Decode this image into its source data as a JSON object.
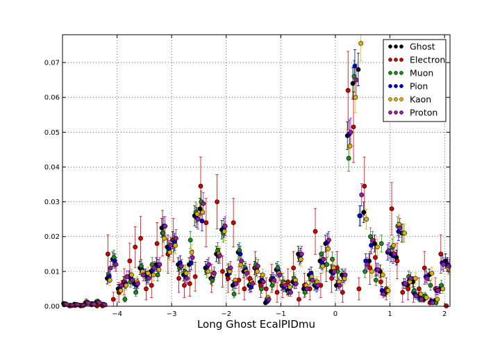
{
  "chart_data": {
    "type": "scatter",
    "title": "",
    "xlabel": "Long Ghost EcalPIDmu",
    "ylabel": "",
    "xlim": [
      -5.0,
      2.1
    ],
    "ylim": [
      0.0,
      0.078
    ],
    "xticks": [
      -4,
      -3,
      -2,
      -1,
      0,
      1,
      2
    ],
    "yticks": [
      0.0,
      0.01,
      0.02,
      0.03,
      0.04,
      0.05,
      0.06,
      0.07
    ],
    "xtick_labels": [
      "−4",
      "−3",
      "−2",
      "−1",
      "0",
      "1",
      "2"
    ],
    "ytick_labels": [
      "0.00",
      "0.01",
      "0.02",
      "0.03",
      "0.04",
      "0.05",
      "0.06",
      "0.07"
    ],
    "grid": true,
    "error_bars": true,
    "legend_position": "top-right",
    "x": [
      -4.95,
      -4.85,
      -4.75,
      -4.65,
      -4.55,
      -4.45,
      -4.35,
      -4.25,
      -4.15,
      -4.05,
      -3.95,
      -3.85,
      -3.75,
      -3.65,
      -3.55,
      -3.45,
      -3.35,
      -3.25,
      -3.15,
      -3.05,
      -2.95,
      -2.85,
      -2.75,
      -2.65,
      -2.55,
      -2.45,
      -2.35,
      -2.25,
      -2.15,
      -2.05,
      -1.95,
      -1.85,
      -1.75,
      -1.65,
      -1.55,
      -1.45,
      -1.35,
      -1.25,
      -1.15,
      -1.05,
      -0.95,
      -0.85,
      -0.75,
      -0.65,
      -0.55,
      -0.45,
      -0.35,
      -0.25,
      -0.15,
      -0.05,
      0.05,
      0.15,
      0.25,
      0.35,
      0.45,
      0.55,
      0.65,
      0.75,
      0.85,
      0.95,
      1.05,
      1.15,
      1.25,
      1.35,
      1.45,
      1.55,
      1.65,
      1.75,
      1.85,
      1.95,
      2.05
    ],
    "series": [
      {
        "name": "Ghost",
        "color": "#000000",
        "values": [
          0.0008,
          0.0002,
          0.0006,
          0.0003,
          0.001,
          0.0006,
          0.0012,
          0.0005,
          0.008,
          0.0135,
          0.005,
          0.007,
          0.0085,
          0.0065,
          0.011,
          0.009,
          0.01,
          0.012,
          0.0225,
          0.017,
          0.019,
          0.012,
          0.009,
          0.012,
          0.026,
          0.028,
          0.011,
          0.008,
          0.015,
          0.022,
          0.009,
          0.006,
          0.0155,
          0.01,
          0.006,
          0.011,
          0.007,
          0.001,
          0.0075,
          0.0105,
          0.006,
          0.0045,
          0.007,
          0.015,
          0.005,
          0.009,
          0.006,
          0.013,
          0.018,
          0.01,
          0.006,
          0.009,
          0.049,
          0.064,
          0.068,
          0.027,
          0.013,
          0.018,
          0.01,
          0.004,
          0.015,
          0.014,
          0.021,
          0.006,
          0.007,
          0.003,
          0.002,
          0.009,
          0.0015,
          0.005,
          0.013
        ]
      },
      {
        "name": "Electron",
        "color": "#d00000",
        "values": [
          0.0004,
          0.0001,
          0.0002,
          0.0001,
          0.0008,
          0.0004,
          0.0,
          0.0,
          0.015,
          0.002,
          0.004,
          0.007,
          0.013,
          0.017,
          0.0195,
          0.005,
          0.006,
          0.018,
          0.021,
          0.015,
          0.019,
          0.008,
          0.006,
          0.0065,
          0.0085,
          0.0345,
          0.024,
          0.008,
          0.03,
          0.01,
          0.008,
          0.024,
          0.0075,
          0.005,
          0.008,
          0.011,
          0.006,
          0.005,
          0.008,
          0.004,
          0.006,
          0.007,
          0.011,
          0.002,
          0.006,
          0.005,
          0.0215,
          0.006,
          0.012,
          0.008,
          0.011,
          0.004,
          0.062,
          0.0515,
          0.005,
          0.0345,
          0.011,
          0.014,
          0.007,
          0.005,
          0.028,
          0.013,
          0.004,
          0.005,
          0.004,
          0.005,
          0.011,
          0.001,
          0.005,
          0.015,
          0.0
        ]
      },
      {
        "name": "Muon",
        "color": "#1a8a1a",
        "values": [
          0.0006,
          0.0003,
          0.0005,
          0.0002,
          0.0012,
          0.0008,
          0.0014,
          0.0006,
          0.009,
          0.014,
          0.0045,
          0.002,
          0.007,
          0.004,
          0.0115,
          0.008,
          0.012,
          0.009,
          0.021,
          0.016,
          0.018,
          0.011,
          0.01,
          0.019,
          0.027,
          0.03,
          0.01,
          0.0075,
          0.016,
          0.021,
          0.0105,
          0.0035,
          0.016,
          0.011,
          0.0065,
          0.012,
          0.005,
          0.002,
          0.006,
          0.011,
          0.007,
          0.004,
          0.008,
          0.014,
          0.004,
          0.008,
          0.0065,
          0.015,
          0.012,
          0.0135,
          0.01,
          0.0085,
          0.0425,
          0.066,
          0.026,
          0.01,
          0.02,
          0.0075,
          0.018,
          0.0045,
          0.017,
          0.023,
          0.021,
          0.0085,
          0.0045,
          0.002,
          0.003,
          0.006,
          0.001,
          0.006,
          0.012
        ]
      },
      {
        "name": "Pion",
        "color": "#0000d0",
        "values": [
          0.0007,
          0.0002,
          0.0005,
          0.0003,
          0.0011,
          0.0007,
          0.0012,
          0.0005,
          0.0085,
          0.013,
          0.005,
          0.0065,
          0.008,
          0.006,
          0.0105,
          0.0085,
          0.0105,
          0.0115,
          0.023,
          0.0165,
          0.0185,
          0.0125,
          0.0085,
          0.0125,
          0.0255,
          0.0245,
          0.0115,
          0.0085,
          0.0145,
          0.0225,
          0.0095,
          0.0065,
          0.015,
          0.0105,
          0.0055,
          0.0105,
          0.0075,
          0.0015,
          0.008,
          0.01,
          0.0055,
          0.005,
          0.0065,
          0.0145,
          0.0055,
          0.0095,
          0.0055,
          0.0125,
          0.0185,
          0.0095,
          0.0065,
          0.0085,
          0.0495,
          0.069,
          0.026,
          0.013,
          0.0175,
          0.0105,
          0.0045,
          0.0155,
          0.0145,
          0.0215,
          0.0065,
          0.0075,
          0.0035,
          0.0025,
          0.0085,
          0.0015,
          0.0045,
          0.0125,
          0.012
        ]
      },
      {
        "name": "Kaon",
        "color": "#e0b000",
        "values": [
          0.0006,
          0.0002,
          0.0005,
          0.0002,
          0.001,
          0.0006,
          0.0011,
          0.0005,
          0.0075,
          0.012,
          0.0045,
          0.006,
          0.009,
          0.007,
          0.01,
          0.0095,
          0.009,
          0.0105,
          0.0195,
          0.0155,
          0.0175,
          0.0115,
          0.0095,
          0.0155,
          0.0265,
          0.027,
          0.01,
          0.009,
          0.015,
          0.0215,
          0.01,
          0.0075,
          0.012,
          0.01,
          0.007,
          0.01,
          0.009,
          0.0025,
          0.007,
          0.0095,
          0.0065,
          0.0055,
          0.0075,
          0.0135,
          0.006,
          0.0085,
          0.007,
          0.0115,
          0.0165,
          0.011,
          0.007,
          0.008,
          0.046,
          0.06,
          0.0755,
          0.025,
          0.01,
          0.017,
          0.009,
          0.0045,
          0.0175,
          0.0235,
          0.021,
          0.007,
          0.008,
          0.0035,
          0.0025,
          0.0095,
          0.002,
          0.005,
          0.011
        ]
      },
      {
        "name": "Proton",
        "color": "#9a1a9a",
        "values": [
          0.0005,
          0.0002,
          0.0004,
          0.0002,
          0.0009,
          0.0006,
          0.001,
          0.0004,
          0.011,
          0.012,
          0.006,
          0.0085,
          0.0075,
          0.0065,
          0.009,
          0.008,
          0.011,
          0.012,
          0.023,
          0.0175,
          0.0195,
          0.0115,
          0.008,
          0.014,
          0.025,
          0.0295,
          0.012,
          0.0095,
          0.0145,
          0.023,
          0.011,
          0.0065,
          0.013,
          0.0095,
          0.0065,
          0.0115,
          0.007,
          0.002,
          0.0075,
          0.009,
          0.006,
          0.004,
          0.0065,
          0.015,
          0.005,
          0.0075,
          0.006,
          0.0135,
          0.019,
          0.01,
          0.006,
          0.009,
          0.05,
          0.065,
          0.032,
          0.012,
          0.019,
          0.0105,
          0.0035,
          0.016,
          0.015,
          0.0225,
          0.0065,
          0.008,
          0.003,
          0.002,
          0.008,
          0.001,
          0.0045,
          0.012,
          0.0115
        ]
      }
    ]
  }
}
